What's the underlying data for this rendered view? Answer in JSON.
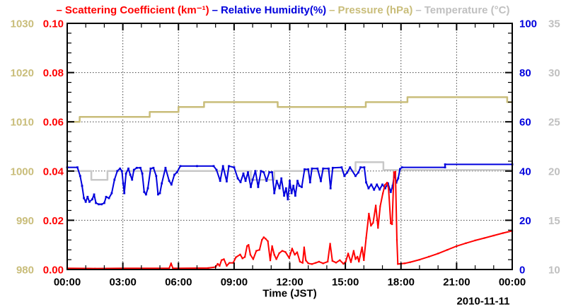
{
  "legend": {
    "items": [
      {
        "label": "Scattering Coefficient (km⁻¹)",
        "color": "#ff0000"
      },
      {
        "label": "Relative Humidity(%)",
        "color": "#0000dd"
      },
      {
        "label": "Pressure (hPa)",
        "color": "#c9bd7a"
      },
      {
        "label": "Temperature (°C)",
        "color": "#c0c0c0"
      }
    ]
  },
  "chart_data": {
    "type": "line",
    "title": "",
    "xlabel": "Time (JST)",
    "date_label": "2010-11-11",
    "x_unit": "hours",
    "x_range": [
      0,
      24
    ],
    "x_major_ticks_hours": [
      0,
      3,
      6,
      9,
      12,
      15,
      18,
      21,
      24
    ],
    "x_tick_labels": [
      "00:00",
      "03:00",
      "06:00",
      "09:00",
      "12:00",
      "15:00",
      "18:00",
      "21:00",
      "00:00"
    ],
    "grid": {
      "horizontal": true,
      "vertical": true,
      "style": "dotted"
    },
    "legend_position": "top",
    "axes": [
      {
        "id": "pressure",
        "label": "Pressure (hPa)",
        "color": "#c9bd7a",
        "text_color": "#c9bd7a",
        "range": [
          980,
          1030
        ],
        "tick_labels_top_to_bottom": [
          "1030",
          "1020",
          "1010",
          "1000",
          "990",
          "980"
        ],
        "side": "left-outer",
        "label_x": 48,
        "anchor": "end"
      },
      {
        "id": "scattering",
        "label": "Scattering Coefficient (km⁻¹)",
        "color": "#ff0000",
        "text_color": "#ff0000",
        "range": [
          0,
          0.1
        ],
        "tick_labels_top_to_bottom": [
          "0.10",
          "0.08",
          "0.06",
          "0.04",
          "0.02",
          "0.00"
        ],
        "side": "left-inner",
        "label_x": 90,
        "anchor": "end"
      },
      {
        "id": "rh",
        "label": "Relative Humidity(%)",
        "color": "#0000dd",
        "text_color": "#0000dd",
        "range": [
          0,
          100
        ],
        "tick_labels_top_to_bottom": [
          "100",
          "80",
          "60",
          "40",
          "20",
          "0"
        ],
        "side": "right-inner",
        "label_x": 734,
        "anchor": "start"
      },
      {
        "id": "temperature",
        "label": "Temperature (°C)",
        "color": "#c8c8c8",
        "text_color": "#c0c0c0",
        "range": [
          10,
          35
        ],
        "tick_labels_top_to_bottom": [
          "35",
          "30",
          "25",
          "20",
          "15",
          "10"
        ],
        "side": "right-outer",
        "label_x": 775,
        "anchor": "start"
      }
    ],
    "series": [
      {
        "name": "Pressure",
        "axis": "pressure",
        "color": "#c9bd7a",
        "width": 2.5,
        "marker": 0,
        "points": [
          [
            0,
            1010
          ],
          [
            0.67,
            1010
          ],
          [
            0.67,
            1011
          ],
          [
            4.45,
            1011
          ],
          [
            4.45,
            1012
          ],
          [
            6.0,
            1012
          ],
          [
            6.0,
            1013
          ],
          [
            7.38,
            1013
          ],
          [
            7.38,
            1014
          ],
          [
            11.35,
            1014
          ],
          [
            11.35,
            1013
          ],
          [
            16.1,
            1013
          ],
          [
            16.1,
            1014
          ],
          [
            18.35,
            1014
          ],
          [
            18.35,
            1015
          ],
          [
            23.73,
            1015
          ],
          [
            23.73,
            1014
          ],
          [
            24,
            1014
          ]
        ]
      },
      {
        "name": "Temperature",
        "axis": "temperature",
        "color": "#c8c8c8",
        "width": 2.5,
        "marker": 0,
        "points": [
          [
            0,
            20
          ],
          [
            1.3,
            20
          ],
          [
            1.3,
            19.1
          ],
          [
            2.17,
            19.1
          ],
          [
            2.17,
            20
          ],
          [
            9.9,
            20
          ],
          [
            9.9,
            19.1
          ],
          [
            11.17,
            19.1
          ],
          [
            11.17,
            20
          ],
          [
            15.55,
            20
          ],
          [
            15.55,
            20.9
          ],
          [
            17.05,
            20.9
          ],
          [
            17.05,
            20.1
          ],
          [
            24,
            20.1
          ]
        ]
      },
      {
        "name": "Relative Humidity",
        "axis": "rh",
        "color": "#0000dd",
        "width": 2,
        "marker": 2.8,
        "points": [
          [
            0,
            41.5
          ],
          [
            0.55,
            41.5
          ],
          [
            0.7,
            38
          ],
          [
            0.8,
            34
          ],
          [
            0.9,
            29
          ],
          [
            1.0,
            27.5
          ],
          [
            1.1,
            29.5
          ],
          [
            1.2,
            27.5
          ],
          [
            1.35,
            28.5
          ],
          [
            1.45,
            30.5
          ],
          [
            1.55,
            27
          ],
          [
            1.7,
            26.5
          ],
          [
            1.85,
            26.5
          ],
          [
            2.0,
            27
          ],
          [
            2.1,
            29.5
          ],
          [
            2.25,
            29
          ],
          [
            2.4,
            31
          ],
          [
            2.55,
            36.5
          ],
          [
            2.7,
            40
          ],
          [
            2.85,
            41
          ],
          [
            2.95,
            40
          ],
          [
            3.02,
            35
          ],
          [
            3.08,
            31
          ],
          [
            3.17,
            39
          ],
          [
            3.3,
            41
          ],
          [
            3.4,
            38.5
          ],
          [
            3.5,
            36.5
          ],
          [
            3.6,
            40.5
          ],
          [
            3.75,
            41.3
          ],
          [
            3.95,
            41.3
          ],
          [
            4.05,
            39
          ],
          [
            4.15,
            31.5
          ],
          [
            4.25,
            30.5
          ],
          [
            4.35,
            33
          ],
          [
            4.5,
            41
          ],
          [
            4.65,
            41.3
          ],
          [
            4.8,
            38
          ],
          [
            4.9,
            30.5
          ],
          [
            5.0,
            31
          ],
          [
            5.1,
            35
          ],
          [
            5.3,
            41.3
          ],
          [
            5.5,
            36
          ],
          [
            5.62,
            34.5
          ],
          [
            5.78,
            38.5
          ],
          [
            5.92,
            39.5
          ],
          [
            6.1,
            42
          ],
          [
            7.0,
            42
          ],
          [
            7.9,
            42
          ],
          [
            8.05,
            40.5
          ],
          [
            8.25,
            36
          ],
          [
            8.4,
            42
          ],
          [
            8.6,
            35.8
          ],
          [
            8.72,
            42
          ],
          [
            9.0,
            41.5
          ],
          [
            9.2,
            37
          ],
          [
            9.35,
            35.5
          ],
          [
            9.5,
            39
          ],
          [
            9.62,
            36
          ],
          [
            9.75,
            39.5
          ],
          [
            9.9,
            33.5
          ],
          [
            10.0,
            36.5
          ],
          [
            10.15,
            40
          ],
          [
            10.3,
            33.5
          ],
          [
            10.45,
            40
          ],
          [
            10.6,
            39.5
          ],
          [
            10.75,
            36
          ],
          [
            10.9,
            39.5
          ],
          [
            11.05,
            39.5
          ],
          [
            11.17,
            31
          ],
          [
            11.3,
            36
          ],
          [
            11.45,
            33
          ],
          [
            11.55,
            37
          ],
          [
            11.7,
            30
          ],
          [
            11.8,
            33
          ],
          [
            11.9,
            28.5
          ],
          [
            12.0,
            36
          ],
          [
            12.1,
            31
          ],
          [
            12.2,
            34
          ],
          [
            12.3,
            30
          ],
          [
            12.42,
            36
          ],
          [
            12.52,
            34
          ],
          [
            12.65,
            33.5
          ],
          [
            12.8,
            40.7
          ],
          [
            13.0,
            40.7
          ],
          [
            13.1,
            35.4
          ],
          [
            13.2,
            41
          ],
          [
            13.5,
            41
          ],
          [
            13.68,
            35.9
          ],
          [
            13.8,
            41
          ],
          [
            14.1,
            41
          ],
          [
            14.2,
            33
          ],
          [
            14.32,
            41.3
          ],
          [
            14.8,
            41.5
          ],
          [
            14.95,
            38
          ],
          [
            15.1,
            39.4
          ],
          [
            15.25,
            41.5
          ],
          [
            15.55,
            38
          ],
          [
            15.7,
            39.4
          ],
          [
            15.82,
            41.5
          ],
          [
            16.02,
            41.5
          ],
          [
            16.12,
            35.4
          ],
          [
            16.25,
            33
          ],
          [
            16.4,
            34.5
          ],
          [
            16.55,
            32.4
          ],
          [
            16.7,
            34.5
          ],
          [
            16.85,
            32.5
          ],
          [
            17.0,
            34.5
          ],
          [
            17.15,
            33
          ],
          [
            17.3,
            35
          ],
          [
            17.45,
            31.5
          ],
          [
            17.55,
            34
          ],
          [
            17.65,
            38.8
          ],
          [
            17.75,
            35.3
          ],
          [
            17.85,
            37
          ],
          [
            17.95,
            40.8
          ],
          [
            18.05,
            41.5
          ],
          [
            20.38,
            41.5
          ],
          [
            20.38,
            42.7
          ],
          [
            24,
            42.7
          ]
        ]
      },
      {
        "name": "Scattering Coefficient",
        "axis": "scattering",
        "color": "#ff0000",
        "width": 2,
        "marker": 2.2,
        "points": [
          [
            0,
            0.0005
          ],
          [
            1.5,
            0.0004
          ],
          [
            3,
            0.0005
          ],
          [
            5.5,
            0.0005
          ],
          [
            5.6,
            0.0025
          ],
          [
            5.7,
            0.0005
          ],
          [
            7.6,
            0.0006
          ],
          [
            8.0,
            0.001
          ],
          [
            8.12,
            0.0023
          ],
          [
            8.22,
            0.0015
          ],
          [
            8.32,
            0.0038
          ],
          [
            8.45,
            0.0042
          ],
          [
            8.6,
            0.0015
          ],
          [
            8.75,
            0.0027
          ],
          [
            8.95,
            0.0027
          ],
          [
            9.1,
            0.005
          ],
          [
            9.33,
            0.0061
          ],
          [
            9.45,
            0.0045
          ],
          [
            9.58,
            0.0051
          ],
          [
            9.7,
            0.0095
          ],
          [
            9.78,
            0.01
          ],
          [
            9.88,
            0.006
          ],
          [
            10.03,
            0.0042
          ],
          [
            10.2,
            0.0076
          ],
          [
            10.37,
            0.008
          ],
          [
            10.5,
            0.012
          ],
          [
            10.6,
            0.0131
          ],
          [
            10.7,
            0.0125
          ],
          [
            10.82,
            0.0115
          ],
          [
            10.95,
            0.0037
          ],
          [
            11.05,
            0.0095
          ],
          [
            11.17,
            0.006
          ],
          [
            11.28,
            0.0042
          ],
          [
            11.43,
            0.0066
          ],
          [
            11.6,
            0.0076
          ],
          [
            11.77,
            0.0071
          ],
          [
            11.97,
            0.0047
          ],
          [
            12.13,
            0.0085
          ],
          [
            12.27,
            0.006
          ],
          [
            12.4,
            0.007
          ],
          [
            12.55,
            0.0032
          ],
          [
            12.7,
            0.0027
          ],
          [
            12.78,
            0.009
          ],
          [
            12.87,
            0.0037
          ],
          [
            13.0,
            0.0025
          ],
          [
            13.2,
            0.0022
          ],
          [
            13.4,
            0.0027
          ],
          [
            13.58,
            0.0032
          ],
          [
            13.8,
            0.0025
          ],
          [
            14.05,
            0.0032
          ],
          [
            14.18,
            0.0105
          ],
          [
            14.3,
            0.0035
          ],
          [
            14.5,
            0.0028
          ],
          [
            14.7,
            0.0038
          ],
          [
            14.9,
            0.0023
          ],
          [
            15.02,
            0.0032
          ],
          [
            15.15,
            0.0065
          ],
          [
            15.3,
            0.003
          ],
          [
            15.45,
            0.0076
          ],
          [
            15.55,
            0.0042
          ],
          [
            15.65,
            0.0052
          ],
          [
            15.73,
            0.0032
          ],
          [
            15.9,
            0.009
          ],
          [
            16.0,
            0.0038
          ],
          [
            16.12,
            0.0128
          ],
          [
            16.27,
            0.0227
          ],
          [
            16.38,
            0.0178
          ],
          [
            16.5,
            0.019
          ],
          [
            16.64,
            0.026
          ],
          [
            16.76,
            0.0169
          ],
          [
            16.88,
            0.0257
          ],
          [
            17.02,
            0.0309
          ],
          [
            17.14,
            0.0344
          ],
          [
            17.25,
            0.0353
          ],
          [
            17.33,
            0.0329
          ],
          [
            17.45,
            0.0187
          ],
          [
            17.52,
            0.0184
          ],
          [
            17.62,
            0.0395
          ],
          [
            17.7,
            0.0397
          ],
          [
            17.78,
            0.012
          ],
          [
            17.83,
            0.0022
          ],
          [
            18.2,
            0.0025
          ],
          [
            18.5,
            0.003
          ],
          [
            19.0,
            0.004
          ],
          [
            19.5,
            0.0052
          ],
          [
            20.0,
            0.0065
          ],
          [
            20.5,
            0.008
          ],
          [
            21.0,
            0.0095
          ],
          [
            21.5,
            0.0107
          ],
          [
            22.0,
            0.0118
          ],
          [
            22.5,
            0.0128
          ],
          [
            23.0,
            0.0138
          ],
          [
            23.5,
            0.0148
          ],
          [
            24.0,
            0.0157
          ]
        ]
      }
    ]
  }
}
